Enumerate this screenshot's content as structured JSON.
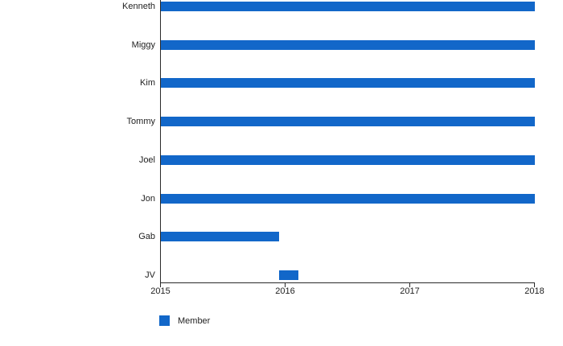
{
  "chart_data": {
    "type": "bar",
    "subtype": "timeline",
    "orientation": "horizontal",
    "title": "",
    "xlabel": "",
    "ylabel": "",
    "categories": [
      "Kenneth",
      "Miggy",
      "Kim",
      "Tommy",
      "Joel",
      "Jon",
      "Gab",
      "JV"
    ],
    "series": [
      {
        "name": "Member",
        "color": "#1267c9",
        "ranges": [
          {
            "start": 2015,
            "end": 2018
          },
          {
            "start": 2015,
            "end": 2018
          },
          {
            "start": 2015,
            "end": 2018
          },
          {
            "start": 2015,
            "end": 2018
          },
          {
            "start": 2015,
            "end": 2018
          },
          {
            "start": 2015,
            "end": 2018
          },
          {
            "start": 2015,
            "end": 2015.95
          },
          {
            "start": 2015.95,
            "end": 2016.1
          }
        ]
      }
    ],
    "xlim": [
      2015,
      2018
    ],
    "x_ticks": [
      "2015",
      "2016",
      "2017",
      "2018"
    ],
    "x_tick_values": [
      2015,
      2016,
      2017,
      2018
    ],
    "grid": false,
    "legend": {
      "position": "bottom-left",
      "items": [
        {
          "label": "Member",
          "color": "#1267c9"
        }
      ]
    }
  },
  "colors": {
    "bar": "#1267c9",
    "axis": "#2a2a2a",
    "text": "#222222",
    "background": "#ffffff"
  }
}
